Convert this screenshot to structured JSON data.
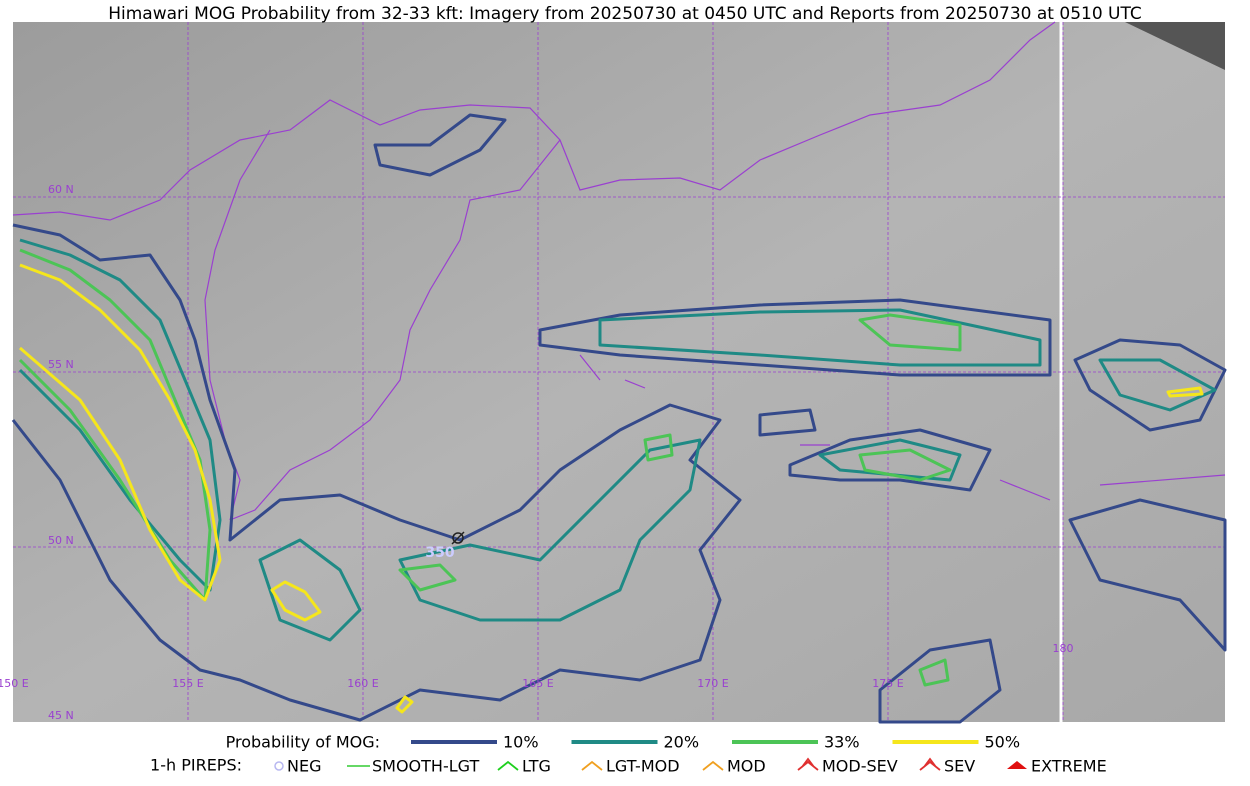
{
  "header": {
    "title": "Himawari MOG Probability from 32-33 kft: Imagery from 20250730 at 0450 UTC and Reports from 20250730 at 0510 UTC"
  },
  "map": {
    "lat_labels": [
      "60 N",
      "55 N",
      "50 N",
      "45 N"
    ],
    "lon_labels": [
      "150 E",
      "155 E",
      "160 E",
      "165 E",
      "170 E",
      "175 E",
      "180"
    ],
    "report_label": "350"
  },
  "legend": {
    "probability": {
      "title": "Probability of MOG:",
      "items": [
        {
          "label": "10%",
          "color": "#34498a"
        },
        {
          "label": "20%",
          "color": "#1f8a85"
        },
        {
          "label": "33%",
          "color": "#4cc456"
        },
        {
          "label": "50%",
          "color": "#f5e61c"
        }
      ]
    },
    "pireps": {
      "title": "1-h PIREPS:",
      "items": [
        {
          "label": "NEG",
          "color": "#b7b7f0"
        },
        {
          "label": "SMOOTH-LGT",
          "color": "#33cc33"
        },
        {
          "label": "LTG",
          "color": "#1ed01e"
        },
        {
          "label": "LGT-MOD",
          "color": "#f0a020"
        },
        {
          "label": "MOD",
          "color": "#f0a020"
        },
        {
          "label": "MOD-SEV",
          "color": "#e03030"
        },
        {
          "label": "SEV",
          "color": "#e03030"
        },
        {
          "label": "EXTREME",
          "color": "#e01010"
        }
      ]
    }
  }
}
